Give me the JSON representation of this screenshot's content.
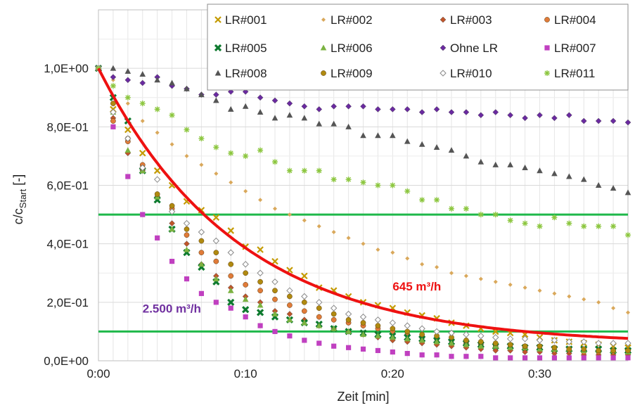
{
  "chart_data": {
    "type": "scatter",
    "title": "",
    "xlabel": "Zeit [min]",
    "ylabel_main": "c/c",
    "ylabel_sub": "Start",
    "ylabel_unit": " [-]",
    "xlim": [
      0,
      36
    ],
    "ylim": [
      0,
      1.2
    ],
    "x_ticks": [
      0,
      10,
      20,
      30
    ],
    "x_tick_labels": [
      "0:00",
      "0:10",
      "0:20",
      "0:30"
    ],
    "y_ticks": [
      0,
      0.2,
      0.4,
      0.6,
      0.8,
      1.0
    ],
    "y_tick_labels": [
      "0,0E+00",
      "2,0E-01",
      "4,0E-01",
      "6,0E-01",
      "8,0E-01",
      "1,0E+00"
    ],
    "grid": "vertical minor lines every 1 min, horizontal lines every 0.1",
    "legend_placement": "top-right",
    "reference_lines": [
      {
        "y": 0.5,
        "color": "#1fb84a"
      },
      {
        "y": 0.1,
        "color": "#1fb84a"
      }
    ],
    "fit_curve": {
      "label": "645 m³/h",
      "color": "#ee1111",
      "model": "exponential decay",
      "c0": 1.0,
      "k": 0.105,
      "offset": 0.055
    },
    "annotations": [
      {
        "text": "645 m³/h",
        "color": "#ee1111",
        "x": 20,
        "y": 0.24
      },
      {
        "text": "2.500 m³/h",
        "color": "#7030a0",
        "x": 3,
        "y": 0.165
      }
    ],
    "series": [
      {
        "name": "LR#001",
        "marker": "x",
        "color": "#c49a00",
        "x": [
          0,
          1,
          2,
          3,
          4,
          5,
          6,
          7,
          8,
          9,
          10,
          11,
          12,
          13,
          14,
          15,
          16,
          17,
          18,
          19,
          20,
          21,
          22,
          23,
          24,
          25,
          26,
          27,
          28,
          29,
          30,
          31,
          32,
          33,
          34,
          35,
          36
        ],
        "y": [
          1.0,
          0.86,
          0.79,
          0.71,
          0.65,
          0.6,
          0.545,
          0.515,
          0.49,
          0.445,
          0.39,
          0.38,
          0.34,
          0.31,
          0.29,
          0.25,
          0.24,
          0.22,
          0.2,
          0.19,
          0.18,
          0.165,
          0.155,
          0.145,
          0.13,
          0.12,
          0.11,
          0.1,
          0.095,
          0.09,
          0.08,
          0.07,
          0.065,
          0.06,
          0.055,
          0.05,
          0.045
        ]
      },
      {
        "name": "LR#002",
        "marker": "diamond-small",
        "color": "#d9a85b",
        "x": [
          0,
          1,
          2,
          3,
          4,
          5,
          6,
          7,
          8,
          9,
          10,
          11,
          12,
          13,
          14,
          15,
          16,
          17,
          18,
          19,
          20,
          21,
          22,
          23,
          24,
          25,
          26,
          27,
          28,
          29,
          30,
          31,
          32,
          33,
          34,
          35,
          36
        ],
        "y": [
          1.0,
          0.96,
          0.88,
          0.82,
          0.78,
          0.74,
          0.7,
          0.67,
          0.64,
          0.61,
          0.58,
          0.55,
          0.52,
          0.5,
          0.48,
          0.46,
          0.44,
          0.42,
          0.4,
          0.38,
          0.37,
          0.35,
          0.33,
          0.32,
          0.3,
          0.29,
          0.28,
          0.27,
          0.26,
          0.25,
          0.24,
          0.23,
          0.22,
          0.21,
          0.2,
          0.18,
          0.165
        ]
      },
      {
        "name": "LR#003",
        "marker": "diamond",
        "color": "#c0552a",
        "x": [
          0,
          1,
          2,
          3,
          4,
          5,
          6,
          7,
          8,
          9,
          10,
          11,
          12,
          13,
          14,
          15,
          16,
          17,
          18,
          19,
          20,
          21,
          22,
          23,
          24,
          25,
          26,
          27,
          28,
          29,
          30,
          31,
          32,
          33,
          34,
          35,
          36
        ],
        "y": [
          1.0,
          0.83,
          0.71,
          0.65,
          0.56,
          0.47,
          0.4,
          0.33,
          0.29,
          0.25,
          0.22,
          0.2,
          0.17,
          0.16,
          0.14,
          0.12,
          0.11,
          0.1,
          0.09,
          0.08,
          0.07,
          0.065,
          0.06,
          0.055,
          0.05,
          0.045,
          0.04,
          0.035,
          0.035,
          0.03,
          0.03,
          0.025,
          0.025,
          0.02,
          0.02,
          0.02,
          0.02
        ]
      },
      {
        "name": "LR#004",
        "marker": "circle",
        "color": "#e07b39",
        "x": [
          0,
          1,
          2,
          3,
          4,
          5,
          6,
          7,
          8,
          9,
          10,
          11,
          12,
          13,
          14,
          15,
          16,
          17,
          18,
          19,
          20,
          21,
          22,
          23,
          24,
          25,
          26,
          27,
          28,
          29,
          30,
          31,
          32,
          33,
          34,
          35,
          36
        ],
        "y": [
          1.0,
          0.82,
          0.75,
          0.67,
          0.56,
          0.52,
          0.43,
          0.37,
          0.34,
          0.29,
          0.26,
          0.24,
          0.21,
          0.19,
          0.17,
          0.15,
          0.14,
          0.13,
          0.12,
          0.11,
          0.1,
          0.09,
          0.08,
          0.075,
          0.07,
          0.06,
          0.055,
          0.05,
          0.045,
          0.045,
          0.04,
          0.035,
          0.035,
          0.03,
          0.03,
          0.03,
          0.03
        ]
      },
      {
        "name": "LR#005",
        "marker": "x-thick",
        "color": "#0d7a2e",
        "x": [
          0,
          1,
          2,
          3,
          4,
          5,
          6,
          7,
          8,
          9,
          10,
          11,
          12,
          13,
          14,
          15,
          16,
          17,
          18,
          19,
          20,
          21,
          22,
          23,
          24,
          25,
          26,
          27,
          28,
          29,
          30,
          31,
          32,
          33,
          34,
          35,
          36
        ],
        "y": [
          1.0,
          0.9,
          0.82,
          0.65,
          0.55,
          0.45,
          0.37,
          0.32,
          0.27,
          0.2,
          0.175,
          0.165,
          0.15,
          0.14,
          0.13,
          0.125,
          0.11,
          0.1,
          0.095,
          0.09,
          0.085,
          0.08,
          0.075,
          0.07,
          0.065,
          0.06,
          0.055,
          0.05,
          0.05,
          0.045,
          0.045,
          0.04,
          0.04,
          0.04,
          0.04,
          0.035,
          0.035
        ]
      },
      {
        "name": "LR#006",
        "marker": "triangle",
        "color": "#7bb241",
        "x": [
          0,
          1,
          2,
          3,
          4,
          5,
          6,
          7,
          8,
          9,
          10,
          11,
          12,
          13,
          14,
          15,
          16,
          17,
          18,
          19,
          20,
          21,
          22,
          23,
          24,
          25,
          26,
          27,
          28,
          29,
          30,
          31,
          32,
          33,
          34,
          35,
          36
        ],
        "y": [
          1.0,
          0.85,
          0.72,
          0.65,
          0.56,
          0.45,
          0.38,
          0.33,
          0.28,
          0.24,
          0.21,
          0.19,
          0.16,
          0.14,
          0.13,
          0.12,
          0.11,
          0.1,
          0.09,
          0.085,
          0.08,
          0.075,
          0.07,
          0.065,
          0.06,
          0.055,
          0.05,
          0.05,
          0.045,
          0.045,
          0.04,
          0.04,
          0.04,
          0.035,
          0.035,
          0.035,
          0.03
        ]
      },
      {
        "name": "Ohne LR",
        "marker": "diamond",
        "color": "#6a2aa0",
        "x": [
          0,
          1,
          2,
          3,
          4,
          5,
          6,
          7,
          8,
          9,
          10,
          11,
          12,
          13,
          14,
          15,
          16,
          17,
          18,
          19,
          20,
          21,
          22,
          23,
          24,
          25,
          26,
          27,
          28,
          29,
          30,
          31,
          32,
          33,
          34,
          35,
          36
        ],
        "y": [
          1.0,
          0.97,
          0.96,
          0.95,
          0.97,
          0.94,
          0.93,
          0.91,
          0.91,
          0.92,
          0.92,
          0.9,
          0.89,
          0.88,
          0.87,
          0.86,
          0.87,
          0.87,
          0.87,
          0.86,
          0.86,
          0.86,
          0.85,
          0.86,
          0.85,
          0.85,
          0.84,
          0.85,
          0.84,
          0.83,
          0.84,
          0.83,
          0.84,
          0.82,
          0.82,
          0.82,
          0.815
        ]
      },
      {
        "name": "LR#007",
        "marker": "square",
        "color": "#c040c0",
        "x": [
          0,
          1,
          2,
          3,
          4,
          5,
          6,
          7,
          8,
          9,
          10,
          11,
          12,
          13,
          14,
          15,
          16,
          17,
          18,
          19,
          20,
          21,
          22,
          23,
          24,
          25,
          26,
          27,
          28,
          29,
          30,
          31,
          32,
          33,
          34,
          35,
          36
        ],
        "y": [
          1.0,
          0.8,
          0.63,
          0.5,
          0.42,
          0.34,
          0.28,
          0.23,
          0.2,
          0.18,
          0.15,
          0.12,
          0.1,
          0.085,
          0.07,
          0.06,
          0.05,
          0.045,
          0.04,
          0.035,
          0.03,
          0.025,
          0.02,
          0.02,
          0.015,
          0.015,
          0.015,
          0.01,
          0.01,
          0.01,
          0.01,
          0.01,
          0.01,
          0.01,
          0.01,
          0.01,
          0.01
        ]
      },
      {
        "name": "LR#008",
        "marker": "triangle",
        "color": "#555555",
        "x": [
          0,
          1,
          2,
          3,
          4,
          5,
          6,
          7,
          8,
          9,
          10,
          11,
          12,
          13,
          14,
          15,
          16,
          17,
          18,
          19,
          20,
          21,
          22,
          23,
          24,
          25,
          26,
          27,
          28,
          29,
          30,
          31,
          32,
          33,
          34,
          35,
          36
        ],
        "y": [
          1.0,
          1.0,
          0.99,
          0.98,
          0.96,
          0.95,
          0.93,
          0.91,
          0.89,
          0.86,
          0.87,
          0.85,
          0.83,
          0.84,
          0.83,
          0.81,
          0.81,
          0.8,
          0.77,
          0.77,
          0.77,
          0.75,
          0.74,
          0.73,
          0.72,
          0.7,
          0.68,
          0.67,
          0.67,
          0.66,
          0.65,
          0.64,
          0.63,
          0.62,
          0.6,
          0.59,
          0.575
        ]
      },
      {
        "name": "LR#009",
        "marker": "circle",
        "color": "#b08a10",
        "x": [
          0,
          1,
          2,
          3,
          4,
          5,
          6,
          7,
          8,
          9,
          10,
          11,
          12,
          13,
          14,
          15,
          16,
          17,
          18,
          19,
          20,
          21,
          22,
          23,
          24,
          25,
          26,
          27,
          28,
          29,
          30,
          31,
          32,
          33,
          34,
          35,
          36
        ],
        "y": [
          1.0,
          0.88,
          0.76,
          0.66,
          0.57,
          0.53,
          0.45,
          0.41,
          0.37,
          0.33,
          0.3,
          0.27,
          0.24,
          0.22,
          0.2,
          0.18,
          0.16,
          0.14,
          0.13,
          0.12,
          0.11,
          0.1,
          0.09,
          0.085,
          0.08,
          0.07,
          0.065,
          0.06,
          0.055,
          0.05,
          0.05,
          0.045,
          0.04,
          0.04,
          0.035,
          0.035,
          0.035
        ]
      },
      {
        "name": "LR#010",
        "marker": "diamond-open",
        "color": "#8a8a8a",
        "x": [
          0,
          1,
          2,
          3,
          4,
          5,
          6,
          7,
          8,
          9,
          10,
          11,
          12,
          13,
          14,
          15,
          16,
          17,
          18,
          19,
          20,
          21,
          22,
          23,
          24,
          25,
          26,
          27,
          28,
          29,
          30,
          31,
          32,
          33,
          34,
          35,
          36
        ],
        "y": [
          1.0,
          0.85,
          0.76,
          0.66,
          0.62,
          0.51,
          0.47,
          0.44,
          0.41,
          0.37,
          0.33,
          0.3,
          0.27,
          0.24,
          0.22,
          0.2,
          0.18,
          0.16,
          0.15,
          0.14,
          0.13,
          0.12,
          0.11,
          0.1,
          0.095,
          0.09,
          0.085,
          0.08,
          0.075,
          0.075,
          0.07,
          0.07,
          0.065,
          0.065,
          0.06,
          0.06,
          0.06
        ]
      },
      {
        "name": "LR#011",
        "marker": "asterisk",
        "color": "#8cc63f",
        "x": [
          0,
          1,
          2,
          3,
          4,
          5,
          6,
          7,
          8,
          9,
          10,
          11,
          12,
          13,
          14,
          15,
          16,
          17,
          18,
          19,
          20,
          21,
          22,
          23,
          24,
          25,
          26,
          27,
          28,
          29,
          30,
          31,
          32,
          33,
          34,
          35,
          36
        ],
        "y": [
          1.0,
          0.94,
          0.9,
          0.88,
          0.86,
          0.84,
          0.79,
          0.76,
          0.73,
          0.71,
          0.7,
          0.72,
          0.68,
          0.65,
          0.65,
          0.65,
          0.62,
          0.62,
          0.61,
          0.6,
          0.6,
          0.58,
          0.55,
          0.55,
          0.52,
          0.52,
          0.5,
          0.5,
          0.48,
          0.47,
          0.46,
          0.49,
          0.47,
          0.46,
          0.46,
          0.46,
          0.43
        ]
      }
    ]
  }
}
